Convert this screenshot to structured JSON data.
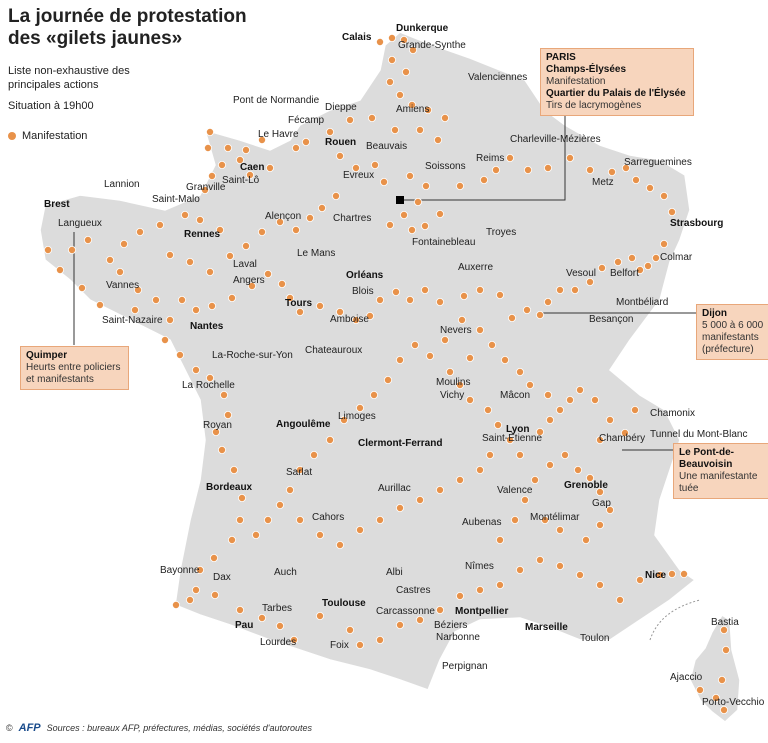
{
  "title_line1": "La journée de protestation",
  "title_line2": "des «gilets jaunes»",
  "subtitle": "Liste non-exhaustive des principales actions",
  "situation": "Situation à 19h00",
  "legend_label": "Manifestation",
  "colors": {
    "land": "#dcdcdc",
    "border": "#ffffff",
    "dot": "#e8924a",
    "dot_stroke": "#ffffff",
    "callout_bg": "#f7d5bd",
    "leader": "#333333"
  },
  "callouts": {
    "paris": {
      "city": "PARIS",
      "place1": "Champs-Élysées",
      "desc1": "Manifestation",
      "place2": "Quartier du Palais de l'Élysée",
      "desc2": "Tirs de lacrymogènes"
    },
    "quimper": {
      "city": "Quimper",
      "desc": "Heurts entre policiers et manifestants"
    },
    "dijon": {
      "city": "Dijon",
      "desc": "5 000 à 6 000 manifestants (préfecture)"
    },
    "pont": {
      "city": "Le Pont-de-Beauvoisin",
      "desc": "Une manifestante tuée"
    }
  },
  "cities": [
    {
      "name": "Calais",
      "bold": true
    },
    {
      "name": "Dunkerque",
      "bold": true
    },
    {
      "name": "Grande-Synthe",
      "bold": false
    },
    {
      "name": "Valenciennes",
      "bold": false
    },
    {
      "name": "Dieppe",
      "bold": false
    },
    {
      "name": "Amiens",
      "bold": false
    },
    {
      "name": "Fécamp",
      "bold": false
    },
    {
      "name": "Pont de Normandie",
      "bold": false
    },
    {
      "name": "Le Havre",
      "bold": false
    },
    {
      "name": "Rouen",
      "bold": true
    },
    {
      "name": "Caen",
      "bold": true
    },
    {
      "name": "Saint-Lô",
      "bold": false
    },
    {
      "name": "Beauvais",
      "bold": false
    },
    {
      "name": "Charleville-Mézières",
      "bold": false
    },
    {
      "name": "Reims",
      "bold": false
    },
    {
      "name": "Soissons",
      "bold": false
    },
    {
      "name": "Sarreguemines",
      "bold": false
    },
    {
      "name": "Metz",
      "bold": false
    },
    {
      "name": "Strasbourg",
      "bold": true
    },
    {
      "name": "Colmar",
      "bold": false
    },
    {
      "name": "Lannion",
      "bold": false
    },
    {
      "name": "Brest",
      "bold": true
    },
    {
      "name": "Granville",
      "bold": false
    },
    {
      "name": "Saint-Malo",
      "bold": false
    },
    {
      "name": "Langueux",
      "bold": false
    },
    {
      "name": "Evreux",
      "bold": false
    },
    {
      "name": "Chartres",
      "bold": false
    },
    {
      "name": "Alençon",
      "bold": false
    },
    {
      "name": "Rennes",
      "bold": true
    },
    {
      "name": "Fontainebleau",
      "bold": false
    },
    {
      "name": "Troyes",
      "bold": false
    },
    {
      "name": "Laval",
      "bold": false
    },
    {
      "name": "Le Mans",
      "bold": false
    },
    {
      "name": "Vannes",
      "bold": false
    },
    {
      "name": "Angers",
      "bold": false
    },
    {
      "name": "Orléans",
      "bold": true
    },
    {
      "name": "Auxerre",
      "bold": false
    },
    {
      "name": "Vesoul",
      "bold": false
    },
    {
      "name": "Belfort",
      "bold": false
    },
    {
      "name": "Montbéliard",
      "bold": false
    },
    {
      "name": "Blois",
      "bold": false
    },
    {
      "name": "Saint-Nazaire",
      "bold": false
    },
    {
      "name": "Nantes",
      "bold": true
    },
    {
      "name": "Tours",
      "bold": true
    },
    {
      "name": "Amboise",
      "bold": false
    },
    {
      "name": "Besançon",
      "bold": false
    },
    {
      "name": "La-Roche-sur-Yon",
      "bold": false
    },
    {
      "name": "Chateauroux",
      "bold": false
    },
    {
      "name": "Nevers",
      "bold": false
    },
    {
      "name": "La Rochelle",
      "bold": false
    },
    {
      "name": "Moulins",
      "bold": false
    },
    {
      "name": "Vichy",
      "bold": false
    },
    {
      "name": "Mâcon",
      "bold": false
    },
    {
      "name": "Royan",
      "bold": false
    },
    {
      "name": "Angoulême",
      "bold": true
    },
    {
      "name": "Limoges",
      "bold": false
    },
    {
      "name": "Clermont-Ferrand",
      "bold": true
    },
    {
      "name": "Lyon",
      "bold": true
    },
    {
      "name": "Chamonix",
      "bold": false
    },
    {
      "name": "Tunnel du Mont-Blanc",
      "bold": false
    },
    {
      "name": "Saint-Étienne",
      "bold": false
    },
    {
      "name": "Chambéry",
      "bold": false
    },
    {
      "name": "Sarlat",
      "bold": false
    },
    {
      "name": "Bordeaux",
      "bold": true
    },
    {
      "name": "Aurillac",
      "bold": false
    },
    {
      "name": "Valence",
      "bold": false
    },
    {
      "name": "Grenoble",
      "bold": true
    },
    {
      "name": "Gap",
      "bold": false
    },
    {
      "name": "Cahors",
      "bold": false
    },
    {
      "name": "Aubenas",
      "bold": false
    },
    {
      "name": "Montélimar",
      "bold": false
    },
    {
      "name": "Bayonne",
      "bold": false
    },
    {
      "name": "Dax",
      "bold": false
    },
    {
      "name": "Auch",
      "bold": false
    },
    {
      "name": "Albi",
      "bold": false
    },
    {
      "name": "Nîmes",
      "bold": false
    },
    {
      "name": "Nice",
      "bold": true
    },
    {
      "name": "Tarbes",
      "bold": false
    },
    {
      "name": "Castres",
      "bold": false
    },
    {
      "name": "Toulouse",
      "bold": true
    },
    {
      "name": "Carcassonne",
      "bold": false
    },
    {
      "name": "Montpellier",
      "bold": true
    },
    {
      "name": "Pau",
      "bold": true
    },
    {
      "name": "Lourdes",
      "bold": false
    },
    {
      "name": "Béziers",
      "bold": false
    },
    {
      "name": "Marseille",
      "bold": true
    },
    {
      "name": "Toulon",
      "bold": false
    },
    {
      "name": "Foix",
      "bold": false
    },
    {
      "name": "Narbonne",
      "bold": false
    },
    {
      "name": "Perpignan",
      "bold": false
    },
    {
      "name": "Bastia",
      "bold": false
    },
    {
      "name": "Ajaccio",
      "bold": false
    },
    {
      "name": "Porto-Vecchio",
      "bold": false
    }
  ],
  "footer": {
    "copyright": "©",
    "agency": "AFP",
    "sources": "Sources : bureaux AFP, préfectures, médias, sociétés d'autoroutes"
  }
}
